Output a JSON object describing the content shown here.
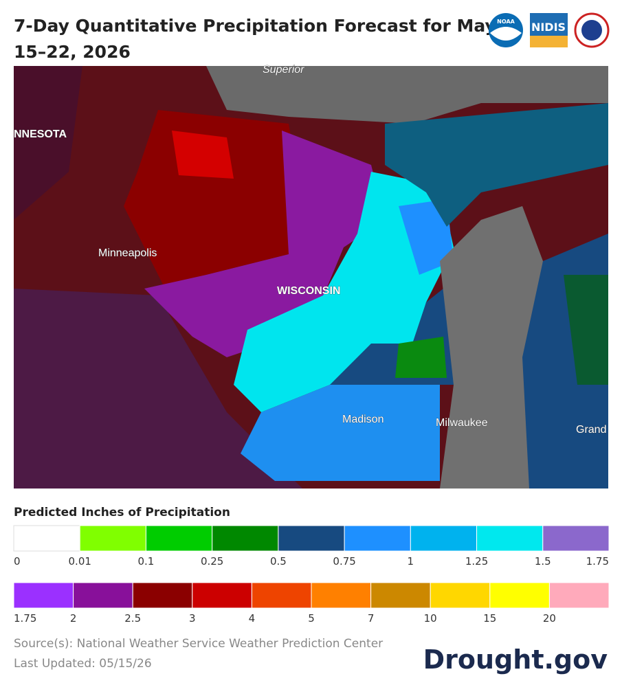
{
  "header": {
    "title_line1": "7-Day Quantitative Precipitation Forecast for May",
    "title_line2": "15–22, 2026",
    "logos": [
      "NOAA",
      "NIDIS"
    ]
  },
  "map": {
    "labels": {
      "lake": "Superior",
      "state_mn": "NNESOTA",
      "city1": "Minneapolis",
      "state_wi": "WISCONSIN",
      "city2": "Madison",
      "city3": "Milwaukee",
      "city4": "Grand"
    }
  },
  "legend": {
    "title": "Predicted Inches of Precipitation",
    "rows": [
      {
        "colors": [
          "#ffffff",
          "#80ff00",
          "#00cc00",
          "#008800",
          "#174a80",
          "#1e90ff",
          "#00b2ee",
          "#00e8ee",
          "#8b68cc"
        ],
        "ticks": [
          0,
          0.01,
          0.1,
          0.25,
          0.5,
          0.75,
          1,
          1.25,
          1.5,
          1.75
        ]
      },
      {
        "colors": [
          "#9b30ff",
          "#88109a",
          "#8b0000",
          "#cc0000",
          "#ee4400",
          "#ff8000",
          "#cc8800",
          "#ffd700",
          "#ffff00",
          "#ffaabb"
        ],
        "ticks": [
          1.75,
          2,
          2.5,
          3,
          4,
          5,
          7,
          10,
          15,
          20
        ]
      }
    ]
  },
  "footer": {
    "source": "Source(s): National Weather Service Weather Prediction Center",
    "updated": "Last Updated: 05/15/26",
    "brand": "Drought.gov"
  }
}
